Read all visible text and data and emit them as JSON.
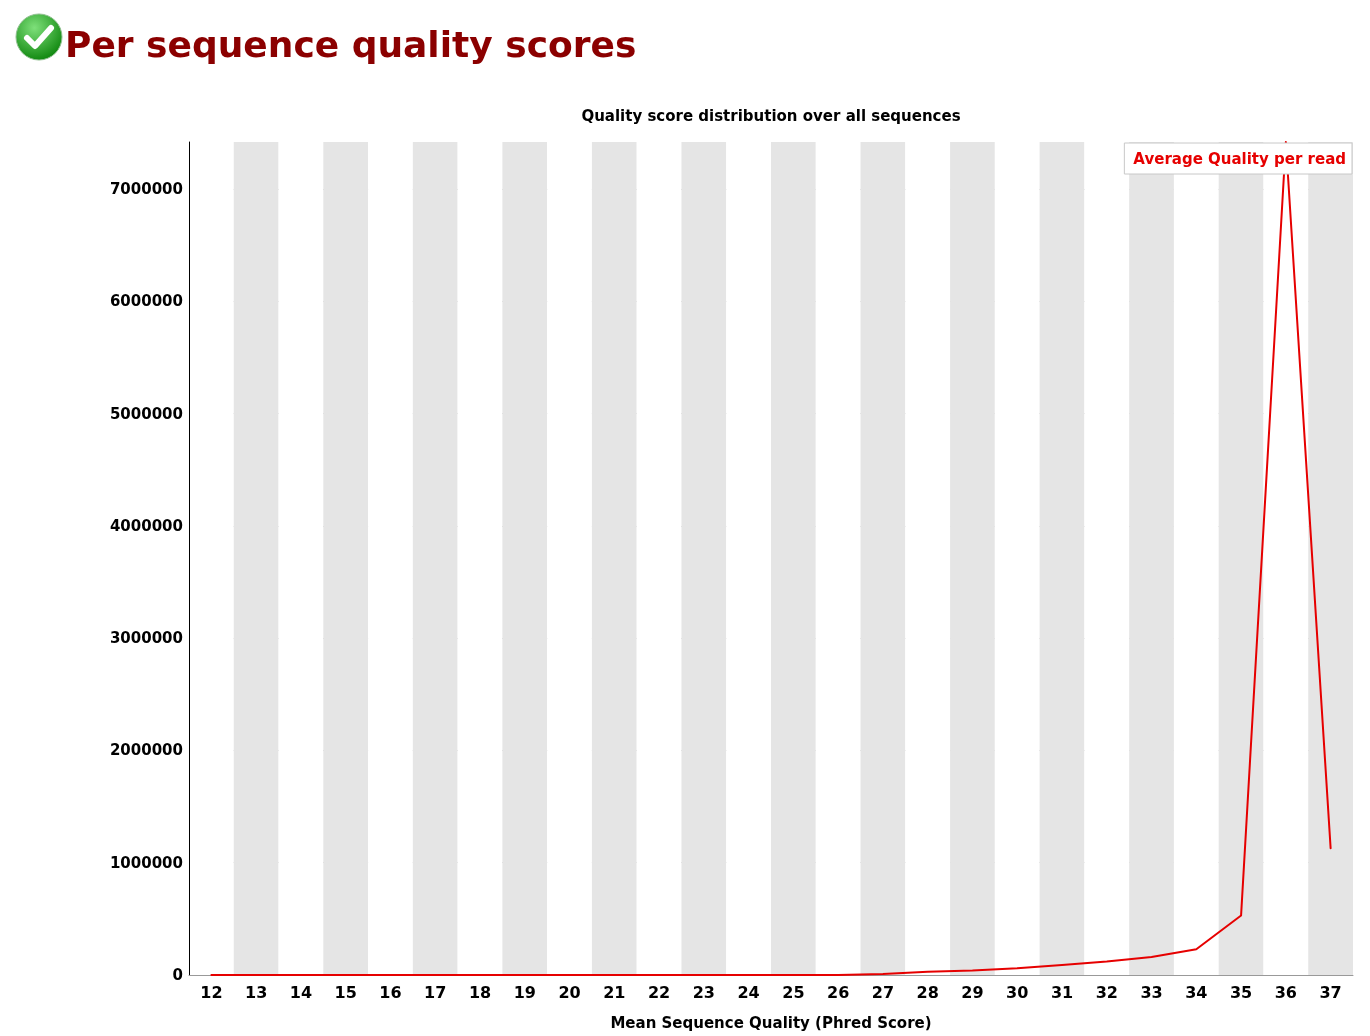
{
  "chart_data": {
    "type": "line",
    "title": "Per sequence quality scores",
    "subtitle": "Quality score distribution over all sequences",
    "xlabel": "Mean Sequence Quality (Phred Score)",
    "categories": [
      "12",
      "13",
      "14",
      "15",
      "16",
      "17",
      "18",
      "19",
      "20",
      "21",
      "22",
      "23",
      "24",
      "25",
      "26",
      "27",
      "28",
      "29",
      "30",
      "31",
      "32",
      "33",
      "34",
      "35",
      "36",
      "37"
    ],
    "series": [
      {
        "name": "Average Quality per read",
        "color": "#e60000",
        "values": [
          0,
          0,
          0,
          0,
          0,
          0,
          0,
          0,
          0,
          0,
          0,
          0,
          0,
          0,
          0,
          10000,
          30000,
          40000,
          60000,
          90000,
          120000,
          160000,
          230000,
          530000,
          7420000,
          1130000
        ]
      }
    ],
    "ylim": [
      0,
      7420000
    ],
    "yticks": [
      0,
      1000000,
      2000000,
      3000000,
      4000000,
      5000000,
      6000000,
      7000000
    ],
    "grid": true,
    "legend": "top right",
    "marker": "none",
    "line_style": "solid"
  }
}
